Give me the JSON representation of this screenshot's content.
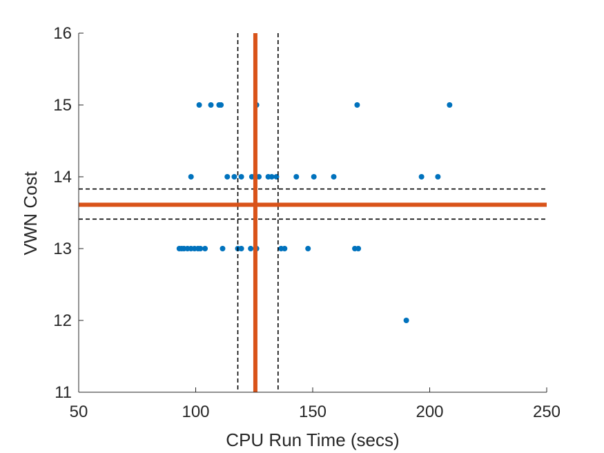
{
  "chart_data": {
    "type": "scatter",
    "xlabel": "CPU Run Time (secs)",
    "ylabel": "VWN Cost",
    "xlim": [
      50,
      250
    ],
    "ylim": [
      11,
      16
    ],
    "xticks": [
      50,
      100,
      150,
      200,
      250
    ],
    "yticks": [
      11,
      12,
      13,
      14,
      15,
      16
    ],
    "grid": false,
    "colors": {
      "points": "#0072BD",
      "mean_lines": "#D95319",
      "ci_lines": "#000000"
    },
    "points": [
      {
        "x": 101.5,
        "y": 15
      },
      {
        "x": 106.5,
        "y": 15
      },
      {
        "x": 110.0,
        "y": 15
      },
      {
        "x": 110.8,
        "y": 15
      },
      {
        "x": 126.0,
        "y": 15
      },
      {
        "x": 169.0,
        "y": 15
      },
      {
        "x": 208.5,
        "y": 15
      },
      {
        "x": 98.0,
        "y": 14
      },
      {
        "x": 113.5,
        "y": 14
      },
      {
        "x": 116.5,
        "y": 14
      },
      {
        "x": 119.5,
        "y": 14
      },
      {
        "x": 124.0,
        "y": 14
      },
      {
        "x": 127.0,
        "y": 14
      },
      {
        "x": 131.0,
        "y": 14
      },
      {
        "x": 132.5,
        "y": 14
      },
      {
        "x": 134.5,
        "y": 14
      },
      {
        "x": 143.0,
        "y": 14
      },
      {
        "x": 150.5,
        "y": 14
      },
      {
        "x": 159.0,
        "y": 14
      },
      {
        "x": 196.5,
        "y": 14
      },
      {
        "x": 203.5,
        "y": 14
      },
      {
        "x": 93.0,
        "y": 13
      },
      {
        "x": 94.0,
        "y": 13
      },
      {
        "x": 95.0,
        "y": 13
      },
      {
        "x": 96.5,
        "y": 13
      },
      {
        "x": 98.0,
        "y": 13
      },
      {
        "x": 99.5,
        "y": 13
      },
      {
        "x": 101.0,
        "y": 13
      },
      {
        "x": 102.0,
        "y": 13
      },
      {
        "x": 104.0,
        "y": 13
      },
      {
        "x": 111.5,
        "y": 13
      },
      {
        "x": 118.0,
        "y": 13
      },
      {
        "x": 119.5,
        "y": 13
      },
      {
        "x": 123.5,
        "y": 13
      },
      {
        "x": 126.0,
        "y": 13
      },
      {
        "x": 136.5,
        "y": 13
      },
      {
        "x": 138.0,
        "y": 13
      },
      {
        "x": 148.0,
        "y": 13
      },
      {
        "x": 168.0,
        "y": 13
      },
      {
        "x": 169.5,
        "y": 13
      },
      {
        "x": 190.0,
        "y": 12
      }
    ],
    "mean": {
      "x": 125.5,
      "y": 13.61
    },
    "ci_x": [
      118.0,
      135.2
    ],
    "ci_y": [
      13.41,
      13.83
    ]
  }
}
